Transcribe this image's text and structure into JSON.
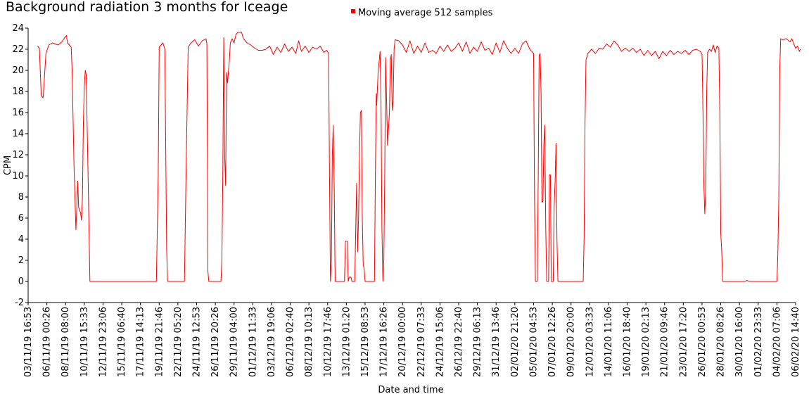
{
  "chart_data": {
    "type": "line",
    "title": "Background radiation 3 months for Iceage",
    "xlabel": "Date and time",
    "ylabel": "CPM",
    "ylim": [
      -2,
      24
    ],
    "yticks": [
      -2,
      0,
      2,
      4,
      6,
      8,
      10,
      12,
      14,
      16,
      18,
      20,
      22,
      24
    ],
    "grid": false,
    "legend": {
      "position": "top-center"
    },
    "xticks": [
      "03/11/19 16:53",
      "06/11/19 00:26",
      "08/11/19 08:00",
      "10/11/19 15:33",
      "12/11/19 23:06",
      "15/11/19 06:40",
      "17/11/19 14:13",
      "19/11/19 21:46",
      "22/11/19 05:20",
      "24/11/19 12:53",
      "26/11/19 20:26",
      "29/11/19 04:00",
      "01/12/19 11:33",
      "03/12/19 19:06",
      "06/12/19 02:40",
      "08/12/19 10:13",
      "10/12/19 17:46",
      "13/12/19 01:20",
      "15/12/19 08:53",
      "17/12/19 16:26",
      "20/12/19 00:00",
      "22/12/19 07:33",
      "24/12/19 15:06",
      "26/12/19 22:40",
      "29/12/19 06:13",
      "31/12/19 13:46",
      "02/01/20 21:20",
      "05/01/20 04:53",
      "07/01/20 12:26",
      "09/01/20 20:00",
      "12/01/20 03:33",
      "14/01/20 11:06",
      "16/01/20 18:40",
      "19/01/20 02:13",
      "21/01/20 09:46",
      "23/01/20 17:20",
      "26/01/20 00:53",
      "28/01/20 08:26",
      "30/01/20 16:00",
      "01/02/20 23:33",
      "04/02/20 07:06",
      "06/02/20 14:40"
    ],
    "series": [
      {
        "name": "Moving average 512 samples",
        "color": "#ff0000",
        "points": [
          [
            0.5,
            22.3
          ],
          [
            0.6,
            22.1
          ],
          [
            0.7,
            17.6
          ],
          [
            0.8,
            17.4
          ],
          [
            0.95,
            21.6
          ],
          [
            1.1,
            22.4
          ],
          [
            1.3,
            22.6
          ],
          [
            1.6,
            22.4
          ],
          [
            1.8,
            22.7
          ],
          [
            1.95,
            23.1
          ],
          [
            2.05,
            23.3
          ],
          [
            2.1,
            22.6
          ],
          [
            2.3,
            22.2
          ],
          [
            2.35,
            20.0
          ],
          [
            2.45,
            11.0
          ],
          [
            2.55,
            4.9
          ],
          [
            2.6,
            7.0
          ],
          [
            2.65,
            9.5
          ],
          [
            2.7,
            7.0
          ],
          [
            2.8,
            6.5
          ],
          [
            2.85,
            5.8
          ],
          [
            2.9,
            8.0
          ],
          [
            2.95,
            15.0
          ],
          [
            3.0,
            18.5
          ],
          [
            3.05,
            20.0
          ],
          [
            3.1,
            19.6
          ],
          [
            3.2,
            10.0
          ],
          [
            3.3,
            0.0
          ],
          [
            6.85,
            0.0
          ],
          [
            6.95,
            10.0
          ],
          [
            7.0,
            22.2
          ],
          [
            7.1,
            22.4
          ],
          [
            7.2,
            22.6
          ],
          [
            7.3,
            22.0
          ],
          [
            7.4,
            3.0
          ],
          [
            7.45,
            0.0
          ],
          [
            8.35,
            0.0
          ],
          [
            8.45,
            12.0
          ],
          [
            8.55,
            22.2
          ],
          [
            8.7,
            22.6
          ],
          [
            8.9,
            22.9
          ],
          [
            9.1,
            22.3
          ],
          [
            9.3,
            22.8
          ],
          [
            9.5,
            23.0
          ],
          [
            9.55,
            22.5
          ],
          [
            9.6,
            1.0
          ],
          [
            9.65,
            0.0
          ],
          [
            10.3,
            0.0
          ],
          [
            10.35,
            2.0
          ],
          [
            10.4,
            10.0
          ],
          [
            10.45,
            23.1
          ],
          [
            10.5,
            11.8
          ],
          [
            10.55,
            9.1
          ],
          [
            10.6,
            19.8
          ],
          [
            10.65,
            18.8
          ],
          [
            10.75,
            21.0
          ],
          [
            10.8,
            22.6
          ],
          [
            10.9,
            23.0
          ],
          [
            11.0,
            22.6
          ],
          [
            11.1,
            23.4
          ],
          [
            11.2,
            23.6
          ],
          [
            11.4,
            23.6
          ],
          [
            11.5,
            23.0
          ],
          [
            11.7,
            22.6
          ],
          [
            11.9,
            22.4
          ],
          [
            12.1,
            22.1
          ],
          [
            12.3,
            21.9
          ],
          [
            12.5,
            21.9
          ],
          [
            12.7,
            22.0
          ],
          [
            12.9,
            22.3
          ],
          [
            13.1,
            21.5
          ],
          [
            13.3,
            22.2
          ],
          [
            13.5,
            21.7
          ],
          [
            13.7,
            22.5
          ],
          [
            13.9,
            21.8
          ],
          [
            14.1,
            22.2
          ],
          [
            14.3,
            21.6
          ],
          [
            14.45,
            22.8
          ],
          [
            14.6,
            21.8
          ],
          [
            14.8,
            22.3
          ],
          [
            15.0,
            21.7
          ],
          [
            15.2,
            22.2
          ],
          [
            15.4,
            22.0
          ],
          [
            15.6,
            22.3
          ],
          [
            15.8,
            21.7
          ],
          [
            15.95,
            21.9
          ],
          [
            16.05,
            21.6
          ],
          [
            16.1,
            10.0
          ],
          [
            16.15,
            0.0
          ],
          [
            16.2,
            2.0
          ],
          [
            16.25,
            12.0
          ],
          [
            16.3,
            14.8
          ],
          [
            16.35,
            9.0
          ],
          [
            16.4,
            0.0
          ],
          [
            16.9,
            0.0
          ],
          [
            16.95,
            3.8
          ],
          [
            17.05,
            3.8
          ],
          [
            17.1,
            0.0
          ],
          [
            17.15,
            0.4
          ],
          [
            17.25,
            0.4
          ],
          [
            17.3,
            0.0
          ],
          [
            17.45,
            0.0
          ],
          [
            17.5,
            5.0
          ],
          [
            17.55,
            9.3
          ],
          [
            17.6,
            2.8
          ],
          [
            17.65,
            6.0
          ],
          [
            17.7,
            12.0
          ],
          [
            17.75,
            16.0
          ],
          [
            17.8,
            16.2
          ],
          [
            17.85,
            6.0
          ],
          [
            17.9,
            1.6
          ],
          [
            17.95,
            1.2
          ],
          [
            18.0,
            0.0
          ],
          [
            18.5,
            0.0
          ],
          [
            18.55,
            10.0
          ],
          [
            18.6,
            17.8
          ],
          [
            18.62,
            16.7
          ],
          [
            18.7,
            20.0
          ],
          [
            18.75,
            20.8
          ],
          [
            18.8,
            21.8
          ],
          [
            18.85,
            17.0
          ],
          [
            18.9,
            5.0
          ],
          [
            18.95,
            0.0
          ],
          [
            19.0,
            2.0
          ],
          [
            19.05,
            10.0
          ],
          [
            19.1,
            21.2
          ],
          [
            19.2,
            12.9
          ],
          [
            19.3,
            16.0
          ],
          [
            19.35,
            21.0
          ],
          [
            19.4,
            21.5
          ],
          [
            19.45,
            16.2
          ],
          [
            19.5,
            17.2
          ],
          [
            19.55,
            22.0
          ],
          [
            19.6,
            22.9
          ],
          [
            19.8,
            22.8
          ],
          [
            20.0,
            22.4
          ],
          [
            20.2,
            21.7
          ],
          [
            20.4,
            22.8
          ],
          [
            20.6,
            21.6
          ],
          [
            20.8,
            22.3
          ],
          [
            21.0,
            21.7
          ],
          [
            21.2,
            22.6
          ],
          [
            21.4,
            21.7
          ],
          [
            21.6,
            21.9
          ],
          [
            21.8,
            21.6
          ],
          [
            22.0,
            22.3
          ],
          [
            22.2,
            21.8
          ],
          [
            22.4,
            22.4
          ],
          [
            22.6,
            21.8
          ],
          [
            22.8,
            22.1
          ],
          [
            23.0,
            22.6
          ],
          [
            23.2,
            21.8
          ],
          [
            23.4,
            22.7
          ],
          [
            23.6,
            21.6
          ],
          [
            23.8,
            22.2
          ],
          [
            24.0,
            21.8
          ],
          [
            24.2,
            22.7
          ],
          [
            24.4,
            21.9
          ],
          [
            24.6,
            22.1
          ],
          [
            24.8,
            21.5
          ],
          [
            25.0,
            22.6
          ],
          [
            25.2,
            21.7
          ],
          [
            25.4,
            22.8
          ],
          [
            25.6,
            22.1
          ],
          [
            25.8,
            21.6
          ],
          [
            26.0,
            22.1
          ],
          [
            26.2,
            21.6
          ],
          [
            26.4,
            22.5
          ],
          [
            26.6,
            22.8
          ],
          [
            26.8,
            22.0
          ],
          [
            27.0,
            21.6
          ],
          [
            27.05,
            8.0
          ],
          [
            27.1,
            0.0
          ],
          [
            27.2,
            0.0
          ],
          [
            27.25,
            10.0
          ],
          [
            27.3,
            21.4
          ],
          [
            27.35,
            21.6
          ],
          [
            27.4,
            18.0
          ],
          [
            27.45,
            7.5
          ],
          [
            27.5,
            7.6
          ],
          [
            27.55,
            13.0
          ],
          [
            27.6,
            14.8
          ],
          [
            27.65,
            5.0
          ],
          [
            27.7,
            0.0
          ],
          [
            27.8,
            0.0
          ],
          [
            27.85,
            10.1
          ],
          [
            27.9,
            10.1
          ],
          [
            27.95,
            0.0
          ],
          [
            28.05,
            0.0
          ],
          [
            28.1,
            7.0
          ],
          [
            28.15,
            9.5
          ],
          [
            28.2,
            13.1
          ],
          [
            28.25,
            4.0
          ],
          [
            28.3,
            0.0
          ],
          [
            29.65,
            0.0
          ],
          [
            29.7,
            4.0
          ],
          [
            29.75,
            15.0
          ],
          [
            29.8,
            21.0
          ],
          [
            29.9,
            21.6
          ],
          [
            30.1,
            22.0
          ],
          [
            30.3,
            21.6
          ],
          [
            30.5,
            22.1
          ],
          [
            30.7,
            22.0
          ],
          [
            30.9,
            22.5
          ],
          [
            31.1,
            22.2
          ],
          [
            31.3,
            22.8
          ],
          [
            31.5,
            22.4
          ],
          [
            31.7,
            21.8
          ],
          [
            31.9,
            22.1
          ],
          [
            32.1,
            21.8
          ],
          [
            32.3,
            22.1
          ],
          [
            32.5,
            21.7
          ],
          [
            32.7,
            22.0
          ],
          [
            32.9,
            21.4
          ],
          [
            33.1,
            21.9
          ],
          [
            33.3,
            21.4
          ],
          [
            33.5,
            21.8
          ],
          [
            33.7,
            21.1
          ],
          [
            33.9,
            21.8
          ],
          [
            34.1,
            21.4
          ],
          [
            34.3,
            21.9
          ],
          [
            34.5,
            21.5
          ],
          [
            34.7,
            21.8
          ],
          [
            34.9,
            21.6
          ],
          [
            35.1,
            21.9
          ],
          [
            35.3,
            21.5
          ],
          [
            35.5,
            21.9
          ],
          [
            35.7,
            22.0
          ],
          [
            35.9,
            21.8
          ],
          [
            36.0,
            21.5
          ],
          [
            36.05,
            16.0
          ],
          [
            36.1,
            9.0
          ],
          [
            36.15,
            6.4
          ],
          [
            36.2,
            9.0
          ],
          [
            36.25,
            18.0
          ],
          [
            36.3,
            21.7
          ],
          [
            36.4,
            22.0
          ],
          [
            36.5,
            21.8
          ],
          [
            36.6,
            22.4
          ],
          [
            36.7,
            21.7
          ],
          [
            36.8,
            22.3
          ],
          [
            36.9,
            22.1
          ],
          [
            36.95,
            16.0
          ],
          [
            37.0,
            4.5
          ],
          [
            37.05,
            3.0
          ],
          [
            37.1,
            0.0
          ],
          [
            37.3,
            0.0
          ],
          [
            38.0,
            0.0
          ],
          [
            38.3,
            0.0
          ],
          [
            38.4,
            0.1
          ],
          [
            38.5,
            0.0
          ],
          [
            40.0,
            0.0
          ],
          [
            40.05,
            2.5
          ],
          [
            40.1,
            8.0
          ],
          [
            40.15,
            20.0
          ],
          [
            40.2,
            23.0
          ],
          [
            40.3,
            22.9
          ],
          [
            40.5,
            23.0
          ],
          [
            40.7,
            22.7
          ],
          [
            40.8,
            23.0
          ],
          [
            40.9,
            22.5
          ],
          [
            41.0,
            22.1
          ],
          [
            41.1,
            22.3
          ],
          [
            41.2,
            21.8
          ],
          [
            41.25,
            22.0
          ]
        ]
      }
    ]
  }
}
